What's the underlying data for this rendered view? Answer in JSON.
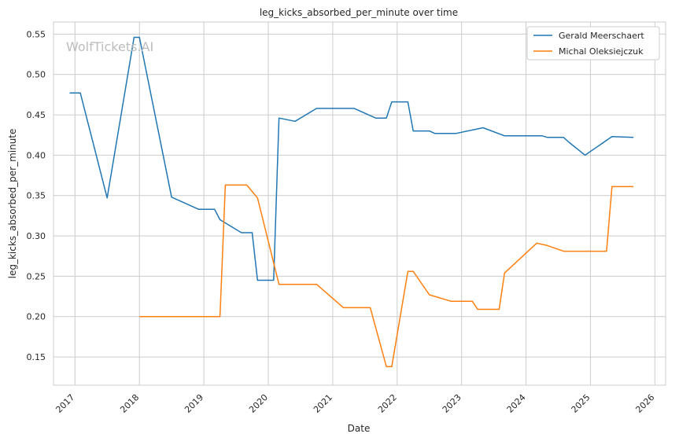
{
  "chart_data": {
    "type": "line",
    "title": "leg_kicks_absorbed_per_minute over time",
    "xlabel": "Date",
    "ylabel": "leg_kicks_absorbed_per_minute",
    "watermark": "WolfTickets.AI",
    "x_ticks": [
      "2017",
      "2018",
      "2019",
      "2020",
      "2021",
      "2022",
      "2023",
      "2024",
      "2025",
      "2026"
    ],
    "y_ticks": [
      "0.15",
      "0.20",
      "0.25",
      "0.30",
      "0.35",
      "0.40",
      "0.45",
      "0.50",
      "0.55"
    ],
    "xlim": [
      "2016-09-01",
      "2026-03-01"
    ],
    "ylim": [
      0.115,
      0.565
    ],
    "grid": true,
    "legend_position": "top-right",
    "series": [
      {
        "name": "Gerald Meerschaert",
        "color": "#1f77b4",
        "points": [
          [
            "2016-12-01",
            0.477
          ],
          [
            "2017-02-01",
            0.477
          ],
          [
            "2017-07-01",
            0.347
          ],
          [
            "2017-12-01",
            0.546
          ],
          [
            "2018-01-01",
            0.546
          ],
          [
            "2018-07-01",
            0.348
          ],
          [
            "2018-12-01",
            0.333
          ],
          [
            "2019-03-01",
            0.333
          ],
          [
            "2019-04-01",
            0.32
          ],
          [
            "2019-08-01",
            0.304
          ],
          [
            "2019-10-01",
            0.304
          ],
          [
            "2019-11-01",
            0.245
          ],
          [
            "2020-02-01",
            0.245
          ],
          [
            "2020-03-01",
            0.446
          ],
          [
            "2020-06-01",
            0.442
          ],
          [
            "2020-10-01",
            0.458
          ],
          [
            "2021-02-01",
            0.458
          ],
          [
            "2021-05-01",
            0.458
          ],
          [
            "2021-09-01",
            0.446
          ],
          [
            "2021-11-01",
            0.446
          ],
          [
            "2021-12-01",
            0.466
          ],
          [
            "2022-03-01",
            0.466
          ],
          [
            "2022-04-01",
            0.43
          ],
          [
            "2022-07-01",
            0.43
          ],
          [
            "2022-08-01",
            0.427
          ],
          [
            "2022-12-01",
            0.427
          ],
          [
            "2023-05-01",
            0.434
          ],
          [
            "2023-09-01",
            0.424
          ],
          [
            "2024-04-01",
            0.424
          ],
          [
            "2024-05-01",
            0.422
          ],
          [
            "2024-07-01",
            0.422
          ],
          [
            "2024-08-01",
            0.422
          ],
          [
            "2024-09-01",
            0.416
          ],
          [
            "2024-12-01",
            0.4
          ],
          [
            "2025-05-01",
            0.423
          ],
          [
            "2025-09-01",
            0.422
          ]
        ]
      },
      {
        "name": "Michal Oleksiejczuk",
        "color": "#ff7f0e",
        "points": [
          [
            "2018-01-01",
            0.2
          ],
          [
            "2019-04-01",
            0.2
          ],
          [
            "2019-05-01",
            0.363
          ],
          [
            "2019-09-01",
            0.363
          ],
          [
            "2019-11-01",
            0.347
          ],
          [
            "2020-03-01",
            0.24
          ],
          [
            "2020-10-01",
            0.24
          ],
          [
            "2021-03-01",
            0.211
          ],
          [
            "2021-08-01",
            0.211
          ],
          [
            "2021-11-01",
            0.138
          ],
          [
            "2021-12-01",
            0.138
          ],
          [
            "2022-03-01",
            0.256
          ],
          [
            "2022-04-01",
            0.256
          ],
          [
            "2022-07-01",
            0.227
          ],
          [
            "2022-11-01",
            0.219
          ],
          [
            "2023-03-01",
            0.219
          ],
          [
            "2023-04-01",
            0.209
          ],
          [
            "2023-08-01",
            0.209
          ],
          [
            "2023-09-01",
            0.254
          ],
          [
            "2024-03-01",
            0.291
          ],
          [
            "2024-05-01",
            0.288
          ],
          [
            "2024-08-01",
            0.281
          ],
          [
            "2025-04-01",
            0.281
          ],
          [
            "2025-05-01",
            0.361
          ],
          [
            "2025-09-01",
            0.361
          ]
        ]
      }
    ]
  }
}
